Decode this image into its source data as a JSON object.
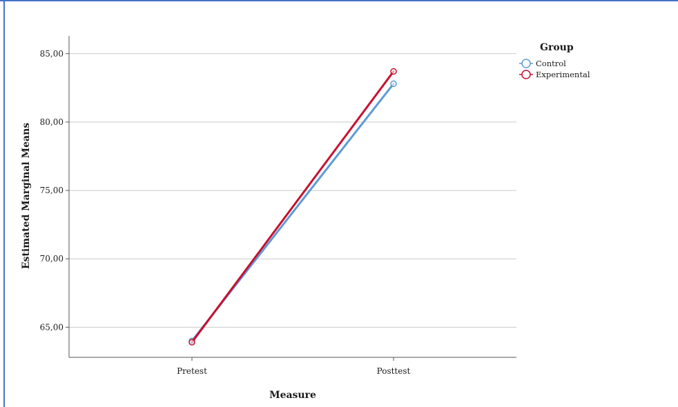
{
  "chart_data": {
    "type": "line",
    "title": "",
    "xlabel": "Measure",
    "ylabel": "Estimated Marginal Means",
    "categories": [
      "Pretest",
      "Posttest"
    ],
    "yticks": [
      "65,00",
      "70,00",
      "75,00",
      "80,00",
      "85,00"
    ],
    "ytick_values": [
      65,
      70,
      75,
      80,
      85
    ],
    "ylim": [
      62.8,
      86.3
    ],
    "grid": "horizontal",
    "legend": {
      "title": "Group",
      "placement": "right"
    },
    "series": [
      {
        "name": "Control",
        "values": [
          64.0,
          82.8
        ],
        "color": "#5b9bd5",
        "marker": "open-circle"
      },
      {
        "name": "Experimental",
        "values": [
          63.9,
          83.7
        ],
        "color": "#c8102e",
        "marker": "open-circle"
      }
    ]
  }
}
